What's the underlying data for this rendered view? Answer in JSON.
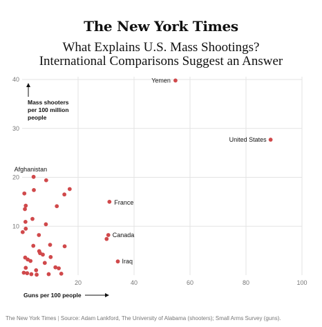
{
  "masthead": "The New York Times",
  "headline": {
    "line1": "What Explains U.S. Mass Shootings?",
    "line2": "International Comparisons Suggest an Answer"
  },
  "footer": {
    "publisher": "The New York Times",
    "separator": "|",
    "source": "Source: Adam Lankford, The University of Alabama (shooters); Small Arms Survey (guns)."
  },
  "colors": {
    "point": "#d0494b",
    "grid": "#e3e3e3",
    "axis_text": "#777777",
    "label_text": "#111111"
  },
  "chart_data": {
    "type": "scatter",
    "xlabel": "Guns per 100 people",
    "ylabel": [
      "Mass shooters",
      "per 100 million",
      "people"
    ],
    "xlim": [
      0,
      100
    ],
    "ylim": [
      0,
      40
    ],
    "xticks": [
      20,
      40,
      60,
      80,
      100
    ],
    "yticks": [
      10,
      20,
      30,
      40
    ],
    "grid": true,
    "points": [
      {
        "x": 54.8,
        "y": 39.8,
        "label": "Yemen"
      },
      {
        "x": 88.8,
        "y": 27.7,
        "label": "United States"
      },
      {
        "x": 4.1,
        "y": 20.1,
        "label": "Afghanistan"
      },
      {
        "x": 31.2,
        "y": 15.0,
        "label": "France"
      },
      {
        "x": 30.8,
        "y": 8.2,
        "label": "Canada"
      },
      {
        "x": 34.2,
        "y": 2.8,
        "label": "Iraq"
      },
      {
        "x": 8.6,
        "y": 19.4,
        "label": ""
      },
      {
        "x": 17.0,
        "y": 17.6,
        "label": ""
      },
      {
        "x": 4.2,
        "y": 17.4,
        "label": ""
      },
      {
        "x": 0.8,
        "y": 16.7,
        "label": ""
      },
      {
        "x": 15.1,
        "y": 16.5,
        "label": ""
      },
      {
        "x": 12.4,
        "y": 14.1,
        "label": ""
      },
      {
        "x": 1.3,
        "y": 14.2,
        "label": ""
      },
      {
        "x": 1.0,
        "y": 13.5,
        "label": ""
      },
      {
        "x": 3.7,
        "y": 11.5,
        "label": ""
      },
      {
        "x": 1.2,
        "y": 10.9,
        "label": ""
      },
      {
        "x": 8.5,
        "y": 10.4,
        "label": ""
      },
      {
        "x": 1.3,
        "y": 9.5,
        "label": ""
      },
      {
        "x": 0.2,
        "y": 8.8,
        "label": ""
      },
      {
        "x": 6.0,
        "y": 8.2,
        "label": ""
      },
      {
        "x": 30.2,
        "y": 7.4,
        "label": ""
      },
      {
        "x": 10.0,
        "y": 6.2,
        "label": ""
      },
      {
        "x": 4.0,
        "y": 6.0,
        "label": ""
      },
      {
        "x": 15.2,
        "y": 5.9,
        "label": ""
      },
      {
        "x": 6.1,
        "y": 4.9,
        "label": ""
      },
      {
        "x": 6.4,
        "y": 4.5,
        "label": ""
      },
      {
        "x": 7.4,
        "y": 4.2,
        "label": ""
      },
      {
        "x": 10.2,
        "y": 3.7,
        "label": ""
      },
      {
        "x": 1.1,
        "y": 3.6,
        "label": ""
      },
      {
        "x": 2.0,
        "y": 3.2,
        "label": ""
      },
      {
        "x": 3.0,
        "y": 2.9,
        "label": ""
      },
      {
        "x": 8.1,
        "y": 2.5,
        "label": ""
      },
      {
        "x": 11.9,
        "y": 1.6,
        "label": ""
      },
      {
        "x": 1.3,
        "y": 1.5,
        "label": ""
      },
      {
        "x": 13.1,
        "y": 1.4,
        "label": ""
      },
      {
        "x": 5.0,
        "y": 1.0,
        "label": ""
      },
      {
        "x": 0.6,
        "y": 0.5,
        "label": ""
      },
      {
        "x": 1.8,
        "y": 0.4,
        "label": ""
      },
      {
        "x": 3.3,
        "y": 0.2,
        "label": ""
      },
      {
        "x": 5.2,
        "y": 0.1,
        "label": ""
      },
      {
        "x": 9.5,
        "y": 0.2,
        "label": ""
      },
      {
        "x": 14.0,
        "y": 0.3,
        "label": ""
      }
    ]
  }
}
